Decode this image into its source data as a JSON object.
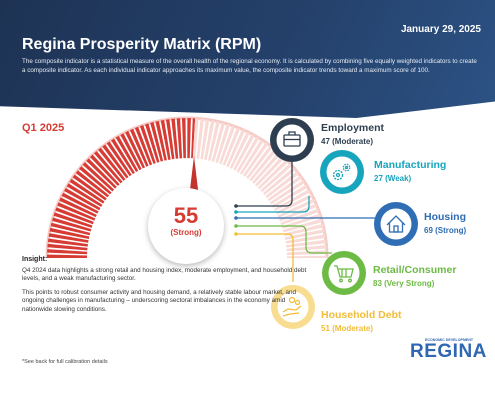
{
  "header": {
    "date": "January 29, 2025",
    "title": "Regina Prosperity Matrix (RPM)",
    "description": "The composite indicator is a statistical measure of the overall health of the regional economy. It is calculated by combining five equally weighted indicators to create a composite indicator. As each individual indicator approaches its maximum value, the composite indicator trends toward a maximum score of 100."
  },
  "gauge": {
    "period": "Q1 2025",
    "score": "55",
    "rating": "(Strong)",
    "max": 100,
    "color": "#d63b34"
  },
  "insight": {
    "heading": "Insight:",
    "paragraph1": "Q4 2024 data highlights a strong retail and housing index, moderate employment, and household debt levels, and a weak manufacturing sector.",
    "paragraph2": "This points to robust consumer activity and housing demand, a relatively stable labour market, and ongoing challenges in manufacturing – underscoring sectoral imbalances in the economy amid nationwide slowing conditions."
  },
  "footnote": "*See back for full calibration details",
  "indicators": [
    {
      "name": "Employment",
      "value": "47 (Moderate)",
      "icon": "briefcase-icon",
      "color": "#2c3e50"
    },
    {
      "name": "Manufacturing",
      "value": "27 (Weak)",
      "icon": "gears-icon",
      "color": "#17a4bd"
    },
    {
      "name": "Housing",
      "value": "69 (Strong)",
      "icon": "house-icon",
      "color": "#2f6db5"
    },
    {
      "name": "Retail/Consumer",
      "value": "83 (Very Strong)",
      "icon": "shopping-cart-icon",
      "color": "#6dbb45"
    },
    {
      "name": "Household Debt",
      "value": "51 (Moderate)",
      "icon": "hand-coins-icon",
      "color": "#f2bd38"
    }
  ],
  "logo": {
    "small_text": "ECONOMIC DEVELOPMENT",
    "main_text": "REGINA",
    "color": "#2f67b0"
  }
}
